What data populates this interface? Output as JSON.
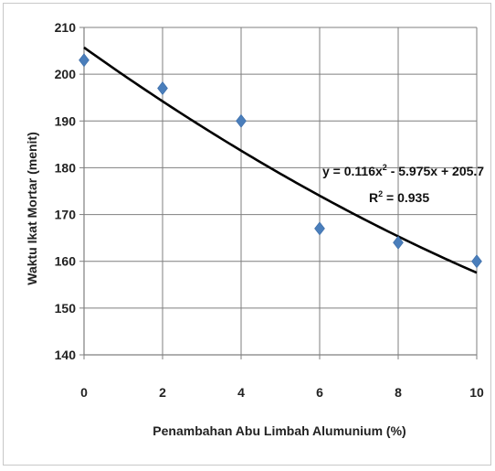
{
  "chart_data": {
    "type": "scatter",
    "xlabel": "Penambahan Abu Limbah Alumunium (%)",
    "ylabel": "Waktu Ikat Mortar (menit)",
    "xlim": [
      0,
      10
    ],
    "ylim": [
      140,
      210
    ],
    "xticks": [
      "0",
      "2",
      "4",
      "6",
      "8",
      "10"
    ],
    "yticks": [
      "140",
      "150",
      "160",
      "170",
      "180",
      "190",
      "200",
      "210"
    ],
    "grid": true,
    "legend": "none",
    "series": [
      {
        "x": [
          0,
          2,
          4,
          6,
          8,
          10
        ],
        "y": [
          203,
          197,
          190,
          167,
          164,
          160
        ],
        "marker": "diamond",
        "color": "#4a7ebb"
      }
    ],
    "trendline": {
      "type": "polynomial",
      "coefficients": [
        0.116,
        -5.975,
        205.7
      ],
      "color": "#000000"
    },
    "annotations": {
      "equation_prefix": "y = 0.116x",
      "equation_sup": "2",
      "equation_suffix": " - 5.975x + 205.7",
      "r2_prefix": "R",
      "r2_sup": "2",
      "r2_suffix": " = 0.935"
    }
  }
}
